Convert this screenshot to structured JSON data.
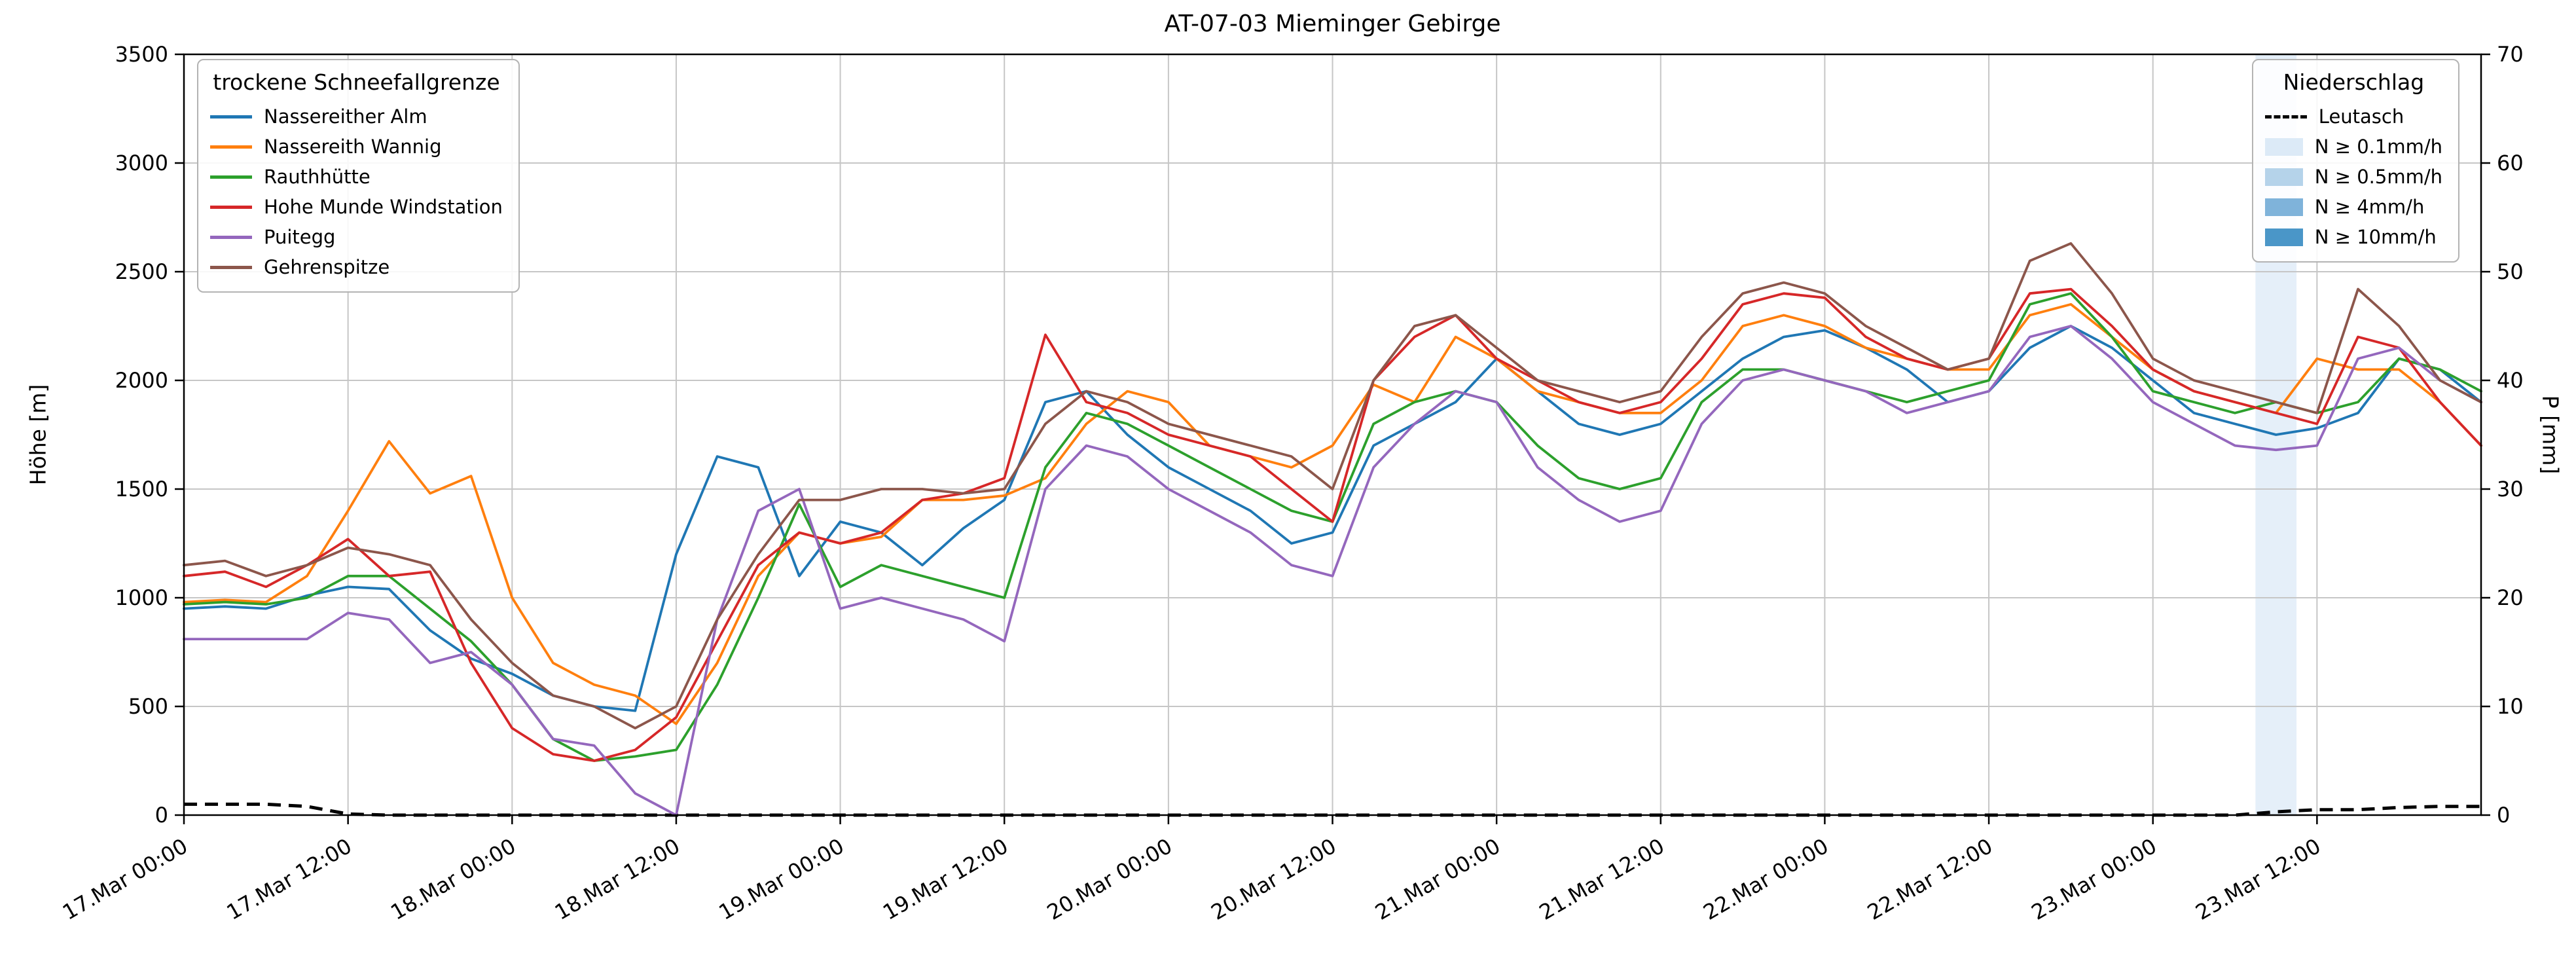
{
  "chart_data": {
    "type": "line",
    "title": "AT-07-03 Mieminger Gebirge",
    "ylabel_left": "Höhe [m]",
    "ylabel_right": "P [mm]",
    "ylim_left": [
      0,
      3500
    ],
    "ylim_right": [
      0,
      70
    ],
    "grid": true,
    "legend_snowline_title": "trockene Schneefallgrenze",
    "legend_precip_title": "Niederschlag",
    "y_ticks_left": [
      0,
      500,
      1000,
      1500,
      2000,
      2500,
      3000,
      3500
    ],
    "y_ticks_right": [
      0,
      10,
      20,
      30,
      40,
      50,
      60,
      70
    ],
    "x_hours_range": [
      0,
      168
    ],
    "x_tick_hours": [
      0,
      12,
      24,
      36,
      48,
      60,
      72,
      84,
      96,
      108,
      120,
      132,
      144,
      156
    ],
    "x_tick_labels": [
      "17.Mar 00:00",
      "17.Mar 12:00",
      "18.Mar 00:00",
      "18.Mar 12:00",
      "19.Mar 00:00",
      "19.Mar 12:00",
      "20.Mar 00:00",
      "20.Mar 12:00",
      "21.Mar 00:00",
      "21.Mar 12:00",
      "22.Mar 00:00",
      "22.Mar 12:00",
      "23.Mar 00:00",
      "23.Mar 12:00"
    ],
    "sample_hours": [
      0,
      3,
      6,
      9,
      12,
      15,
      18,
      21,
      24,
      27,
      30,
      33,
      36,
      39,
      42,
      45,
      48,
      51,
      54,
      57,
      60,
      63,
      66,
      69,
      72,
      75,
      78,
      81,
      84,
      87,
      90,
      93,
      96,
      99,
      102,
      105,
      108,
      111,
      114,
      117,
      120,
      123,
      126,
      129,
      132,
      135,
      138,
      141,
      144,
      147,
      150,
      153,
      156,
      159,
      162,
      165,
      168
    ],
    "series": [
      {
        "name": "Nassereither Alm",
        "color": "#1f77b4",
        "values": [
          950,
          960,
          950,
          1010,
          1050,
          1040,
          850,
          720,
          650,
          550,
          500,
          480,
          1200,
          1650,
          1600,
          1100,
          1350,
          1300,
          1150,
          1320,
          1450,
          1900,
          1950,
          1750,
          1600,
          1500,
          1400,
          1250,
          1300,
          1700,
          1800,
          1900,
          2100,
          1950,
          1800,
          1750,
          1800,
          1950,
          2100,
          2200,
          2230,
          2150,
          2050,
          1900,
          1950,
          2150,
          2250,
          2150,
          2000,
          1850,
          1800,
          1750,
          1780,
          1850,
          2100,
          2050,
          1900
        ]
      },
      {
        "name": "Nassereith Wannig",
        "color": "#ff7f0e",
        "values": [
          980,
          990,
          980,
          1100,
          1400,
          1720,
          1480,
          1560,
          1000,
          700,
          600,
          550,
          420,
          700,
          1100,
          1300,
          1250,
          1280,
          1450,
          1450,
          1470,
          1550,
          1800,
          1950,
          1900,
          1700,
          1650,
          1600,
          1700,
          1980,
          1900,
          2200,
          2100,
          1950,
          1900,
          1850,
          1850,
          2000,
          2250,
          2300,
          2250,
          2150,
          2100,
          2050,
          2050,
          2300,
          2350,
          2200,
          2050,
          1950,
          1900,
          1850,
          2100,
          2050,
          2050,
          1900,
          1700
        ]
      },
      {
        "name": "Rauthhütte",
        "color": "#2ca02c",
        "values": [
          970,
          980,
          970,
          1000,
          1100,
          1100,
          950,
          800,
          600,
          350,
          250,
          270,
          300,
          600,
          1000,
          1430,
          1050,
          1150,
          1100,
          1050,
          1000,
          1600,
          1850,
          1800,
          1700,
          1600,
          1500,
          1400,
          1350,
          1800,
          1900,
          1950,
          1900,
          1700,
          1550,
          1500,
          1550,
          1900,
          2050,
          2050,
          2000,
          1950,
          1900,
          1950,
          2000,
          2350,
          2400,
          2200,
          1950,
          1900,
          1850,
          1900,
          1850,
          1900,
          2100,
          2050,
          1950
        ]
      },
      {
        "name": "Hohe Munde Windstation",
        "color": "#d62728",
        "values": [
          1100,
          1120,
          1050,
          1150,
          1270,
          1100,
          1120,
          700,
          400,
          280,
          250,
          300,
          450,
          800,
          1150,
          1300,
          1250,
          1300,
          1450,
          1480,
          1550,
          2210,
          1900,
          1850,
          1750,
          1700,
          1650,
          1500,
          1350,
          2000,
          2200,
          2300,
          2100,
          2000,
          1900,
          1850,
          1900,
          2100,
          2350,
          2400,
          2380,
          2200,
          2100,
          2050,
          2100,
          2400,
          2420,
          2250,
          2050,
          1950,
          1900,
          1850,
          1800,
          2200,
          2150,
          1900,
          1700
        ]
      },
      {
        "name": "Puitegg",
        "color": "#9467bd",
        "values": [
          810,
          810,
          810,
          810,
          930,
          900,
          700,
          750,
          600,
          350,
          320,
          100,
          0,
          900,
          1400,
          1500,
          950,
          1000,
          950,
          900,
          800,
          1500,
          1700,
          1650,
          1500,
          1400,
          1300,
          1150,
          1100,
          1600,
          1800,
          1950,
          1900,
          1600,
          1450,
          1350,
          1400,
          1800,
          2000,
          2050,
          2000,
          1950,
          1850,
          1900,
          1950,
          2200,
          2250,
          2100,
          1900,
          1800,
          1700,
          1680,
          1700,
          2100,
          2150,
          2000,
          1900
        ]
      },
      {
        "name": "Gehrenspitze",
        "color": "#8c564b",
        "values": [
          1150,
          1170,
          1100,
          1150,
          1230,
          1200,
          1150,
          900,
          700,
          550,
          500,
          400,
          500,
          900,
          1200,
          1450,
          1450,
          1500,
          1500,
          1480,
          1500,
          1800,
          1950,
          1900,
          1800,
          1750,
          1700,
          1650,
          1500,
          2000,
          2250,
          2300,
          2150,
          2000,
          1950,
          1900,
          1950,
          2200,
          2400,
          2450,
          2400,
          2250,
          2150,
          2050,
          2100,
          2550,
          2630,
          2400,
          2100,
          2000,
          1950,
          1900,
          1850,
          2420,
          2250,
          2000,
          1900
        ]
      }
    ],
    "leutasch": {
      "name": "Leutasch",
      "color": "#000000",
      "style": "dashed",
      "axis": "right",
      "values": [
        1.0,
        1.0,
        1.0,
        0.8,
        0.1,
        0,
        0,
        0,
        0,
        0,
        0,
        0,
        0,
        0,
        0,
        0,
        0,
        0,
        0,
        0,
        0,
        0,
        0,
        0,
        0,
        0,
        0,
        0,
        0,
        0,
        0,
        0,
        0,
        0,
        0,
        0,
        0,
        0,
        0,
        0,
        0,
        0,
        0,
        0,
        0,
        0,
        0,
        0,
        0,
        0,
        0,
        0.3,
        0.5,
        0.5,
        0.7,
        0.8,
        0.8
      ]
    },
    "precip_levels": [
      {
        "label": "N ≥ 0.1mm/h",
        "color": "#dceaf7"
      },
      {
        "label": "N ≥ 0.5mm/h",
        "color": "#b5d3ea"
      },
      {
        "label": "N ≥ 4mm/h",
        "color": "#7fb3da"
      },
      {
        "label": "N ≥ 10mm/h",
        "color": "#4a96c8"
      }
    ],
    "precip_bands": [
      {
        "start_hour": 151.5,
        "end_hour": 154.5,
        "level": "N ≥ 0.1mm/h",
        "color": "#dceaf7"
      }
    ]
  }
}
